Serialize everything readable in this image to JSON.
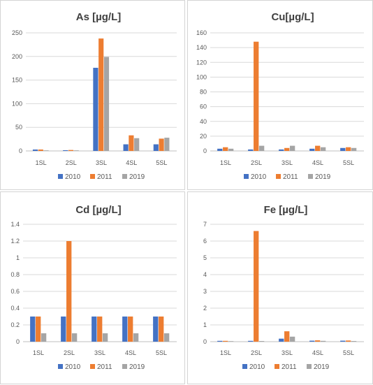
{
  "colors": {
    "2010": "#4472C4",
    "2011": "#ED7D31",
    "2019": "#A5A5A5",
    "grid": "#d9d9d9"
  },
  "chart_data": [
    {
      "type": "bar",
      "title": "As [µg/L]",
      "categories": [
        "1SL",
        "2SL",
        "3SL",
        "4SL",
        "5SL"
      ],
      "ylim": [
        0,
        250
      ],
      "yticks": [
        "0",
        "50",
        "100",
        "150",
        "200",
        "250"
      ],
      "grid": true,
      "legend": "bottom",
      "series": [
        {
          "name": "2010",
          "values": [
            3,
            1.5,
            176,
            14,
            14
          ]
        },
        {
          "name": "2011",
          "values": [
            3,
            2,
            238,
            33,
            26
          ]
        },
        {
          "name": "2019",
          "values": [
            1,
            1,
            199,
            27,
            28
          ]
        }
      ]
    },
    {
      "type": "bar",
      "title": "Cu[µg/L]",
      "categories": [
        "1SL",
        "2SL",
        "3SL",
        "4SL",
        "5SL"
      ],
      "ylim": [
        0,
        160
      ],
      "yticks": [
        "0",
        "20",
        "40",
        "60",
        "80",
        "100",
        "120",
        "140",
        "160"
      ],
      "grid": true,
      "legend": "bottom",
      "series": [
        {
          "name": "2010",
          "values": [
            3,
            2,
            2,
            3,
            4
          ]
        },
        {
          "name": "2011",
          "values": [
            5,
            148,
            4,
            7,
            5
          ]
        },
        {
          "name": "2019",
          "values": [
            3,
            7,
            7,
            5,
            4
          ]
        }
      ]
    },
    {
      "type": "bar",
      "title": "Cd [µg/L]",
      "categories": [
        "1SL",
        "2SL",
        "3SL",
        "4SL",
        "5SL"
      ],
      "ylim": [
        0,
        1.4
      ],
      "yticks": [
        "0",
        "0.2",
        "0.4",
        "0.6",
        "0.8",
        "1",
        "1.2",
        "1.4"
      ],
      "grid": true,
      "legend": "bottom",
      "series": [
        {
          "name": "2010",
          "values": [
            0.3,
            0.3,
            0.3,
            0.3,
            0.3
          ]
        },
        {
          "name": "2011",
          "values": [
            0.3,
            1.2,
            0.3,
            0.3,
            0.3
          ]
        },
        {
          "name": "2019",
          "values": [
            0.1,
            0.1,
            0.1,
            0.1,
            0.1
          ]
        }
      ]
    },
    {
      "type": "bar",
      "title": "Fe [µg/L]",
      "categories": [
        "1SL",
        "2SL",
        "3SL",
        "4SL",
        "5SL"
      ],
      "ylim": [
        0,
        7
      ],
      "yticks": [
        "0",
        "1",
        "2",
        "3",
        "4",
        "5",
        "6",
        "7"
      ],
      "grid": true,
      "legend": "bottom",
      "series": [
        {
          "name": "2010",
          "values": [
            0.05,
            0.05,
            0.18,
            0.06,
            0.06
          ]
        },
        {
          "name": "2011",
          "values": [
            0.05,
            6.6,
            0.62,
            0.08,
            0.07
          ]
        },
        {
          "name": "2019",
          "values": [
            0.02,
            0.04,
            0.3,
            0.05,
            0.04
          ]
        }
      ]
    }
  ]
}
